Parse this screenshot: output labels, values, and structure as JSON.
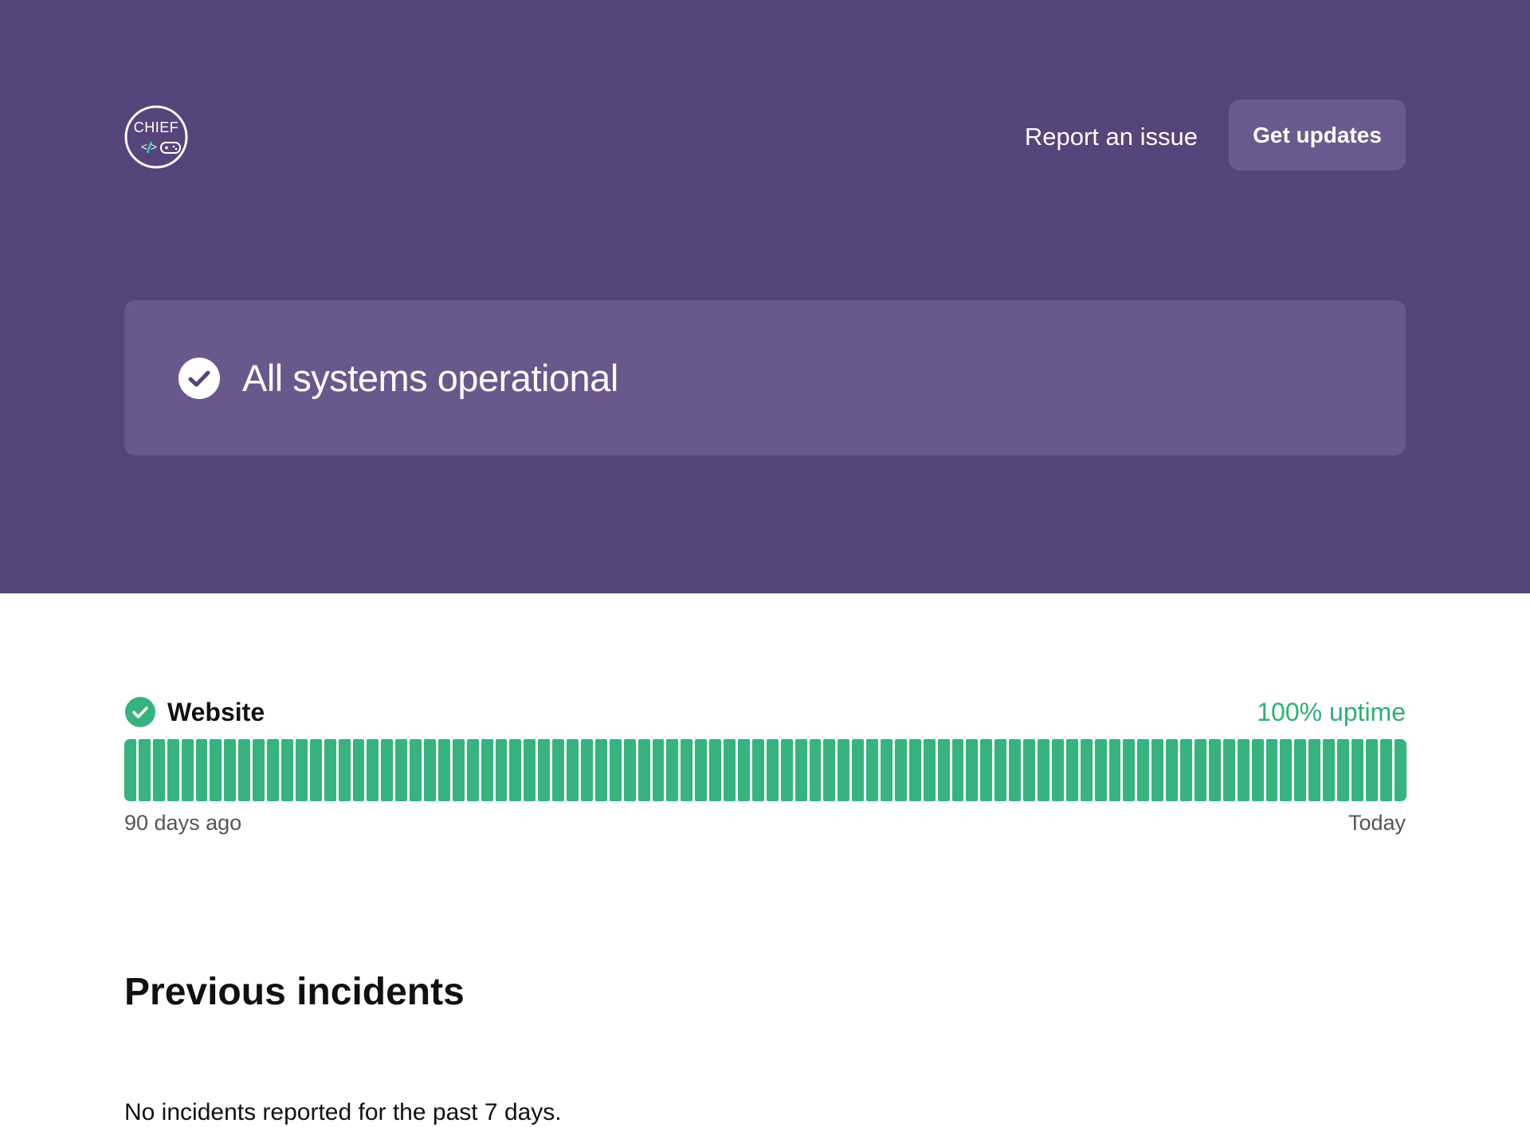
{
  "header": {
    "logo_text": "CHIEF",
    "report_label": "Report an issue",
    "updates_label": "Get updates"
  },
  "status": {
    "title": "All systems operational"
  },
  "component": {
    "name": "Website",
    "uptime": "100% uptime",
    "days": 90,
    "left_label": "90 days ago",
    "right_label": "Today",
    "bar_color": "#36b37e"
  },
  "incidents": {
    "title": "Previous incidents",
    "empty_message": "No incidents reported for the past 7 days."
  },
  "colors": {
    "header_bg": "#56447b",
    "card_bg": "#6a588c",
    "button_bg": "#6a5a90",
    "accent_green": "#36b37e",
    "uptime_text": "#2fae7a"
  }
}
